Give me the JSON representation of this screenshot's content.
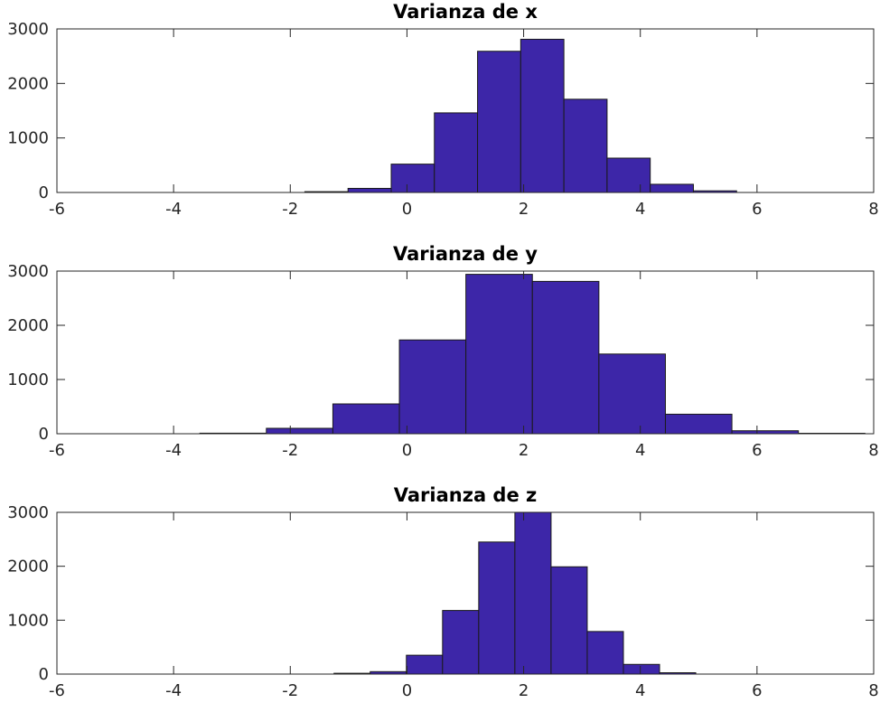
{
  "chart_data": [
    {
      "type": "histogram",
      "title": "Varianza de x",
      "xlim": [
        -6,
        8
      ],
      "ylim": [
        0,
        3000
      ],
      "xticks": [
        "-6",
        "-4",
        "-2",
        "0",
        "2",
        "4",
        "6",
        "8"
      ],
      "yticks": [
        "0",
        "1000",
        "2000",
        "3000"
      ],
      "bar_color": "#3d26a8",
      "bins": [
        {
          "x0": -1.75,
          "x1": -1.01,
          "value": 15
        },
        {
          "x0": -1.01,
          "x1": -0.27,
          "value": 75
        },
        {
          "x0": -0.27,
          "x1": 0.47,
          "value": 520
        },
        {
          "x0": 0.47,
          "x1": 1.21,
          "value": 1460
        },
        {
          "x0": 1.21,
          "x1": 1.95,
          "value": 2590
        },
        {
          "x0": 1.95,
          "x1": 2.69,
          "value": 2810
        },
        {
          "x0": 2.69,
          "x1": 3.43,
          "value": 1710
        },
        {
          "x0": 3.43,
          "x1": 4.17,
          "value": 630
        },
        {
          "x0": 4.17,
          "x1": 4.91,
          "value": 150
        },
        {
          "x0": 4.91,
          "x1": 5.65,
          "value": 30
        }
      ]
    },
    {
      "type": "histogram",
      "title": "Varianza de y",
      "xlim": [
        -6,
        8
      ],
      "ylim": [
        0,
        3000
      ],
      "xticks": [
        "-6",
        "-4",
        "-2",
        "0",
        "2",
        "4",
        "6",
        "8"
      ],
      "yticks": [
        "0",
        "1000",
        "2000",
        "3000"
      ],
      "bar_color": "#3d26a8",
      "bins": [
        {
          "x0": -3.55,
          "x1": -2.41,
          "value": 10
        },
        {
          "x0": -2.41,
          "x1": -1.27,
          "value": 100
        },
        {
          "x0": -1.27,
          "x1": -0.13,
          "value": 550
        },
        {
          "x0": -0.13,
          "x1": 1.01,
          "value": 1730
        },
        {
          "x0": 1.01,
          "x1": 2.15,
          "value": 2940
        },
        {
          "x0": 2.15,
          "x1": 3.29,
          "value": 2810
        },
        {
          "x0": 3.29,
          "x1": 4.43,
          "value": 1470
        },
        {
          "x0": 4.43,
          "x1": 5.57,
          "value": 360
        },
        {
          "x0": 5.57,
          "x1": 6.71,
          "value": 55
        },
        {
          "x0": 6.71,
          "x1": 7.85,
          "value": 8
        }
      ]
    },
    {
      "type": "histogram",
      "title": "Varianza de z",
      "xlim": [
        -6,
        8
      ],
      "ylim": [
        0,
        3000
      ],
      "xticks": [
        "-6",
        "-4",
        "-2",
        "0",
        "2",
        "4",
        "6",
        "8"
      ],
      "yticks": [
        "0",
        "1000",
        "2000",
        "3000"
      ],
      "bar_color": "#3d26a8",
      "bins": [
        {
          "x0": -1.25,
          "x1": -0.63,
          "value": 15
        },
        {
          "x0": -0.63,
          "x1": -0.01,
          "value": 45
        },
        {
          "x0": -0.01,
          "x1": 0.61,
          "value": 350
        },
        {
          "x0": 0.61,
          "x1": 1.23,
          "value": 1180
        },
        {
          "x0": 1.23,
          "x1": 1.85,
          "value": 2450
        },
        {
          "x0": 1.85,
          "x1": 2.47,
          "value": 3000
        },
        {
          "x0": 2.47,
          "x1": 3.09,
          "value": 1990
        },
        {
          "x0": 3.09,
          "x1": 3.71,
          "value": 790
        },
        {
          "x0": 3.71,
          "x1": 4.33,
          "value": 180
        },
        {
          "x0": 4.33,
          "x1": 4.95,
          "value": 25
        }
      ]
    }
  ]
}
